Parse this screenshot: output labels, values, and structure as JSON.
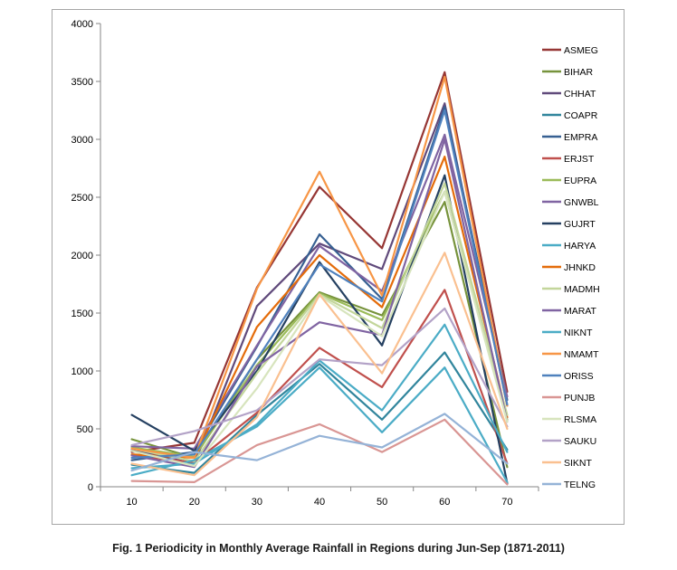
{
  "caption": "Fig. 1 Periodicity in Monthly Average Rainfall in Regions during Jun-Sep (1871-2011)",
  "chart_data": {
    "type": "line",
    "title": "",
    "xlabel": "",
    "ylabel": "",
    "x": [
      10,
      20,
      30,
      40,
      50,
      60,
      70
    ],
    "ylim": [
      0,
      4000
    ],
    "yticks": [
      0,
      500,
      1000,
      1500,
      2000,
      2500,
      3000,
      3500,
      4000
    ],
    "grid": false,
    "legend_position": "right",
    "series": [
      {
        "name": "ASMEG",
        "color": "#963634",
        "values": [
          300,
          380,
          1720,
          2590,
          2060,
          3580,
          820
        ]
      },
      {
        "name": "BIHAR",
        "color": "#77933c",
        "values": [
          410,
          250,
          1100,
          1680,
          1480,
          2460,
          170
        ]
      },
      {
        "name": "CHHAT",
        "color": "#604a7b",
        "values": [
          320,
          200,
          1560,
          2100,
          1880,
          3310,
          700
        ]
      },
      {
        "name": "COAPR",
        "color": "#31859c",
        "values": [
          190,
          120,
          620,
          1060,
          580,
          1160,
          320
        ]
      },
      {
        "name": "EMPRA",
        "color": "#376092",
        "values": [
          230,
          300,
          1210,
          2180,
          1620,
          3280,
          750
        ]
      },
      {
        "name": "ERJST",
        "color": "#c0504d",
        "values": [
          270,
          210,
          640,
          1200,
          860,
          1700,
          200
        ]
      },
      {
        "name": "EUPRA",
        "color": "#9bbb59",
        "values": [
          340,
          260,
          1050,
          1670,
          1440,
          2550,
          580
        ]
      },
      {
        "name": "GNWBL",
        "color": "#8064a2",
        "values": [
          350,
          330,
          1220,
          2080,
          1690,
          3040,
          780
        ]
      },
      {
        "name": "GUJRT",
        "color": "#254061",
        "values": [
          620,
          310,
          1000,
          1940,
          1220,
          2690,
          30
        ]
      },
      {
        "name": "HARYA",
        "color": "#4bacc6",
        "values": [
          160,
          200,
          540,
          1090,
          660,
          1400,
          300
        ]
      },
      {
        "name": "JHNKD",
        "color": "#e46c0a",
        "values": [
          280,
          250,
          1380,
          2000,
          1550,
          2850,
          600
        ]
      },
      {
        "name": "MADMH",
        "color": "#c3d69b",
        "values": [
          330,
          220,
          980,
          1660,
          1370,
          2620,
          620
        ]
      },
      {
        "name": "MARAT",
        "color": "#8064a2",
        "values": [
          270,
          170,
          1040,
          1420,
          1310,
          3000,
          560
        ]
      },
      {
        "name": "NIKNT",
        "color": "#4bacc6",
        "values": [
          100,
          230,
          520,
          1030,
          470,
          1030,
          40
        ]
      },
      {
        "name": "NMAMT",
        "color": "#f79646",
        "values": [
          330,
          250,
          1710,
          2720,
          1650,
          3540,
          700
        ]
      },
      {
        "name": "ORISS",
        "color": "#4f81bd",
        "values": [
          250,
          280,
          1100,
          1920,
          1600,
          3250,
          710
        ]
      },
      {
        "name": "PUNJB",
        "color": "#d99694",
        "values": [
          50,
          40,
          360,
          540,
          300,
          580,
          20
        ]
      },
      {
        "name": "RLSMA",
        "color": "#d7e4bd",
        "values": [
          310,
          180,
          850,
          1650,
          1300,
          2550,
          560
        ]
      },
      {
        "name": "SAUKU",
        "color": "#b3a2c7",
        "values": [
          360,
          480,
          660,
          1100,
          1050,
          1540,
          520
        ]
      },
      {
        "name": "SIKNT",
        "color": "#fac090",
        "values": [
          200,
          100,
          600,
          1660,
          980,
          2020,
          500
        ]
      },
      {
        "name": "TELNG",
        "color": "#95b3d7",
        "values": [
          140,
          300,
          230,
          440,
          340,
          630,
          200
        ]
      }
    ]
  }
}
